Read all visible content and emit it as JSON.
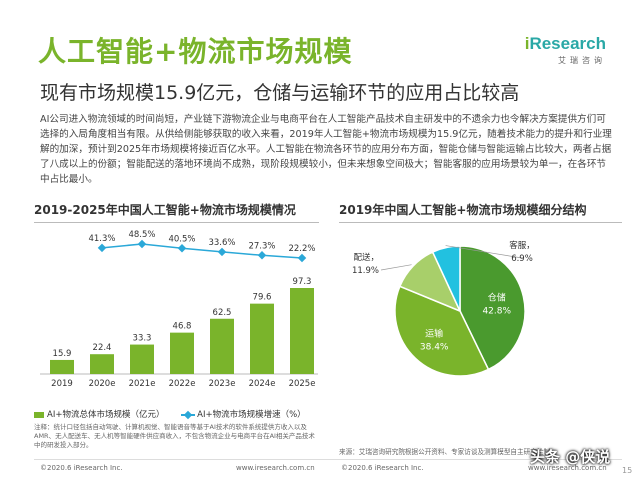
{
  "title": "人工智能+物流市场规模",
  "subtitle": "现有市场规模15.9亿元，仓储与运输环节的应用占比较高",
  "logo": {
    "brand_i": "i",
    "brand_rest": "Research",
    "cn": "艾瑞咨询"
  },
  "paragraph": "AI公司进入物流领域的时间尚短，产业链下游物流企业与电商平台在人工智能产品技术自主研发中的不遗余力也令解决方案提供方们可选择的入局角度相当有限。从供给侧能够获取的收入来看，2019年人工智能+物流市场规模为15.9亿元，随着技术能力的提升和行业理解的加深，预计到2025年市场规模将接近百亿水平。人工智能在物流各环节的应用分布方面，智能仓储与智能运输占比较大，两者占据了八成以上的份额；智能配送的落地环境尚不成熟，现阶段规模较小，但未来想象空间极大；智能客服的应用场景较为单一，在各环节中占比最小。",
  "left_chart_title": "2019-2025年中国人工智能+物流市场规模情况",
  "right_chart_title": "2019年中国人工智能+物流市场规模细分结构",
  "legend": {
    "bar": "AI+物流总体市场规模（亿元）",
    "line": "AI+物流市场规模增速（%）"
  },
  "note": "注释：统计口径包括自动驾驶、计算机视觉、智能语音等基于AI技术的软件系统提供方收入以及AMR、无人配送车、无人机等智能硬件供应商收入，不包含物流企业与电商平台在AI相关产品技术中的研发投入部分。",
  "source": "来源：艾瑞咨询研究院根据公开资料、专家访谈及测算模型自主研究绘制。",
  "footer": {
    "copyright": "©2020.6 iResearch Inc.",
    "website": "www.iresearch.com.cn",
    "page": "15"
  },
  "watermark": "头条 @侠说",
  "colors": {
    "green": "#7ab42b",
    "teal": "#2aa8a6",
    "blue": "#2aa8d8",
    "pie_dark": "#4a9a2e",
    "pie_light": "#7ab42b",
    "pie_pale": "#a8cf6a",
    "pie_cyan": "#22c1e0"
  },
  "chart_data": [
    {
      "type": "bar",
      "categories": [
        "2019",
        "2020e",
        "2021e",
        "2022e",
        "2023e",
        "2024e",
        "2025e"
      ],
      "series": [
        {
          "name": "AI+物流总体市场规模（亿元）",
          "type": "bar",
          "values": [
            15.9,
            22.4,
            33.3,
            46.8,
            62.5,
            79.6,
            97.3
          ]
        },
        {
          "name": "AI+物流市场规模增速（%）",
          "type": "line",
          "values": [
            null,
            41.3,
            48.5,
            40.5,
            33.6,
            27.3,
            22.2
          ]
        }
      ],
      "value_labels": [
        "15.9",
        "22.4",
        "33.3",
        "46.8",
        "62.5",
        "79.6",
        "97.3"
      ],
      "rate_labels": [
        "",
        "41.3%",
        "48.5%",
        "40.5%",
        "33.6%",
        "27.3%",
        "22.2%"
      ]
    },
    {
      "type": "pie",
      "slices": [
        {
          "label": "仓储",
          "pct_label": "42.8%",
          "value": 42.8
        },
        {
          "label": "运输",
          "pct_label": "38.4%",
          "value": 38.4
        },
        {
          "label": "配送",
          "pct_label": "11.9%",
          "value": 11.9
        },
        {
          "label": "客服",
          "pct_label": "6.9%",
          "value": 6.9
        }
      ]
    }
  ]
}
